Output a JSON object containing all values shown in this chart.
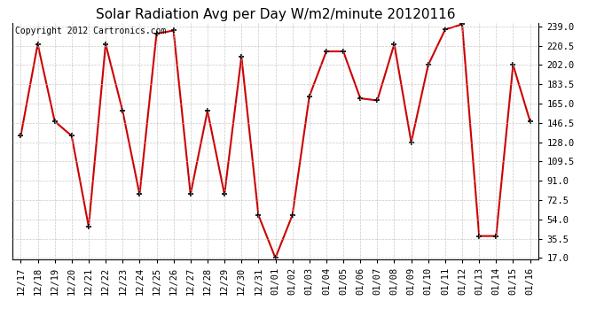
{
  "title": "Solar Radiation Avg per Day W/m2/minute 20120116",
  "copyright": "Copyright 2012 Cartronics.com",
  "x_labels": [
    "12/17",
    "12/18",
    "12/19",
    "12/20",
    "12/21",
    "12/22",
    "12/23",
    "12/24",
    "12/25",
    "12/26",
    "12/27",
    "12/28",
    "12/29",
    "12/30",
    "12/31",
    "01/01",
    "01/02",
    "01/03",
    "01/04",
    "01/05",
    "01/06",
    "01/07",
    "01/08",
    "01/09",
    "01/10",
    "01/11",
    "01/12",
    "01/13",
    "01/14",
    "01/15",
    "01/16"
  ],
  "y_values": [
    134.0,
    222.0,
    148.0,
    134.0,
    47.0,
    222.0,
    158.0,
    78.0,
    232.0,
    235.0,
    78.0,
    158.0,
    78.0,
    210.0,
    58.0,
    17.0,
    58.0,
    172.0,
    215.0,
    215.0,
    170.0,
    168.0,
    222.0,
    128.0,
    202.0,
    236.0,
    241.0,
    38.0,
    38.0,
    202.0,
    148.0
  ],
  "y_ticks": [
    17.0,
    35.5,
    54.0,
    72.5,
    91.0,
    109.5,
    128.0,
    146.5,
    165.0,
    183.5,
    202.0,
    220.5,
    239.0
  ],
  "y_min": 17.0,
  "y_max": 239.0,
  "line_color": "#cc0000",
  "marker_color": "#000000",
  "bg_color": "#ffffff",
  "grid_color": "#bbbbbb",
  "title_fontsize": 11,
  "copyright_fontsize": 7,
  "tick_fontsize": 7.5
}
